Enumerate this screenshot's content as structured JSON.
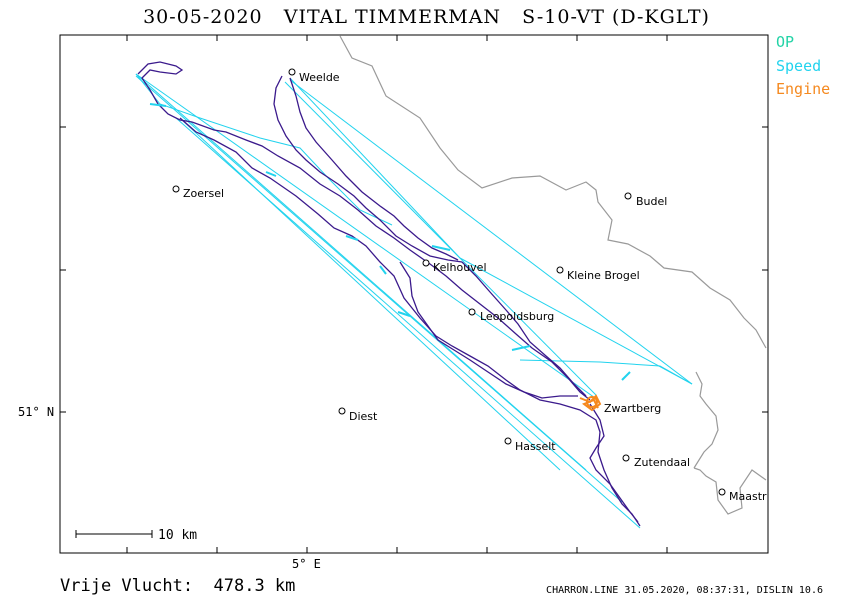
{
  "header": {
    "title": "30-05-2020   VITAL TIMMERMAN   S-10-VT (D-KGLT)"
  },
  "legend": {
    "op": {
      "label": "OP",
      "color": "#22d3a6"
    },
    "speed": {
      "label": "Speed",
      "color": "#22d3ee"
    },
    "engine": {
      "label": "Engine",
      "color": "#f5891f"
    }
  },
  "axes": {
    "lat_label": "51° N",
    "lon_label": "5° E"
  },
  "scale_bar": {
    "label": "10 km"
  },
  "places": [
    {
      "name": "Weelde"
    },
    {
      "name": "Zoersel"
    },
    {
      "name": "Budel"
    },
    {
      "name": "Kelhouvel"
    },
    {
      "name": "Kleine Brogel"
    },
    {
      "name": "Leopoldsburg"
    },
    {
      "name": "Zwartberg"
    },
    {
      "name": "Diest"
    },
    {
      "name": "Hasselt"
    },
    {
      "name": "Zutendaal"
    },
    {
      "name": "Maastr"
    }
  ],
  "footer": {
    "distance": "Vrije Vlucht:  478.3 km",
    "credit": "CHARRON.LINE 31.05.2020, 08:37:31, DISLIN 10.6"
  },
  "colors": {
    "track": "#3b1a8c",
    "leg": "#22d3ee",
    "border": "#9a9a9a",
    "engine": "#f5891f"
  }
}
